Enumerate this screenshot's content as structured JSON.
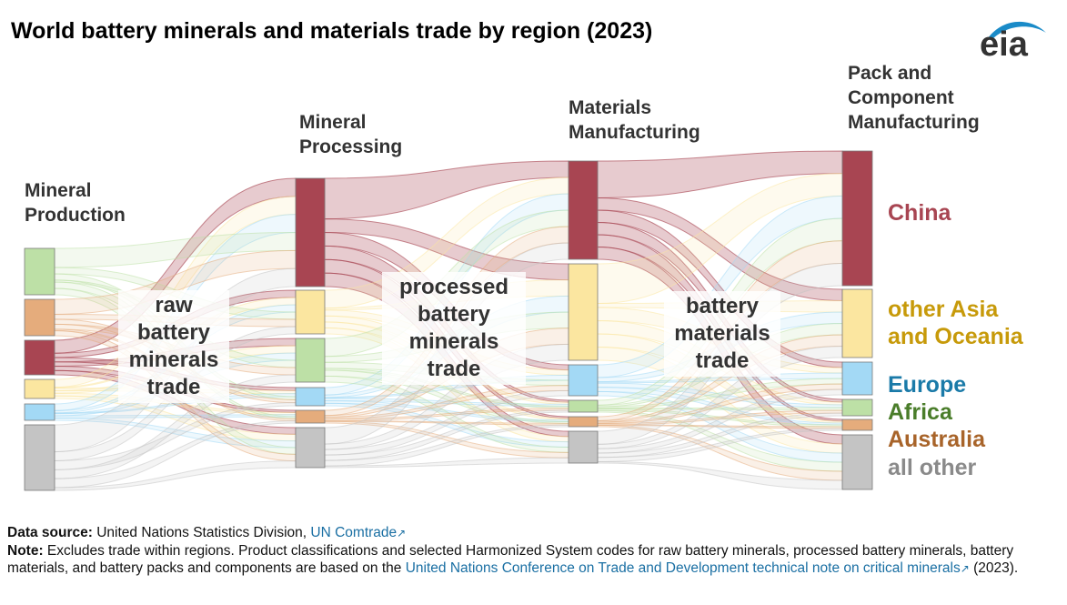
{
  "title": "World battery minerals and materials trade by region (2023)",
  "logo": {
    "text": "eia",
    "accent_color": "#1a8bc8"
  },
  "stages": [
    {
      "id": "mineral-production",
      "lines": [
        "Mineral",
        "Production"
      ]
    },
    {
      "id": "mineral-processing",
      "lines": [
        "Mineral",
        "Processing"
      ]
    },
    {
      "id": "materials-manufacturing",
      "lines": [
        "Materials",
        "Manufacturing"
      ]
    },
    {
      "id": "pack-component",
      "lines": [
        "Pack and",
        "Component",
        "Manufacturing"
      ]
    }
  ],
  "trade_labels": [
    {
      "id": "raw",
      "lines": [
        "raw",
        "battery",
        "minerals",
        "trade"
      ]
    },
    {
      "id": "processed",
      "lines": [
        "processed",
        "battery",
        "minerals",
        "trade"
      ]
    },
    {
      "id": "materials",
      "lines": [
        "battery",
        "materials",
        "trade"
      ]
    }
  ],
  "regions": [
    {
      "id": "china",
      "label_lines": [
        "China"
      ],
      "color": "#a84552"
    },
    {
      "id": "other-asia",
      "label_lines": [
        "other Asia",
        "and Oceania"
      ],
      "color": "#fbe6a0",
      "label_color": "#c79a0a"
    },
    {
      "id": "europe",
      "label_lines": [
        "Europe"
      ],
      "color": "#a3d9f5",
      "label_color": "#1a7aa8"
    },
    {
      "id": "africa",
      "label_lines": [
        "Africa"
      ],
      "color": "#bde0a6",
      "label_color": "#4a7d2a"
    },
    {
      "id": "australia",
      "label_lines": [
        "Australia"
      ],
      "color": "#e5ac7c",
      "label_color": "#a8642a"
    },
    {
      "id": "all-other",
      "label_lines": [
        "all other"
      ],
      "color": "#c4c4c4",
      "label_color": "#8a8a8a"
    }
  ],
  "footer": {
    "source_label": "Data source:",
    "source_text": "United Nations Statistics Division,",
    "source_link": "UN Comtrade",
    "note_label": "Note:",
    "note_text": "Excludes trade within regions. Product classifications and selected Harmonized System codes for raw battery minerals, processed battery minerals, battery materials, and battery packs and components are based on the",
    "note_link": "United Nations Conference on Trade and Development technical note on critical minerals",
    "note_suffix": "(2023).",
    "ext_icon": "external-link-icon"
  }
}
